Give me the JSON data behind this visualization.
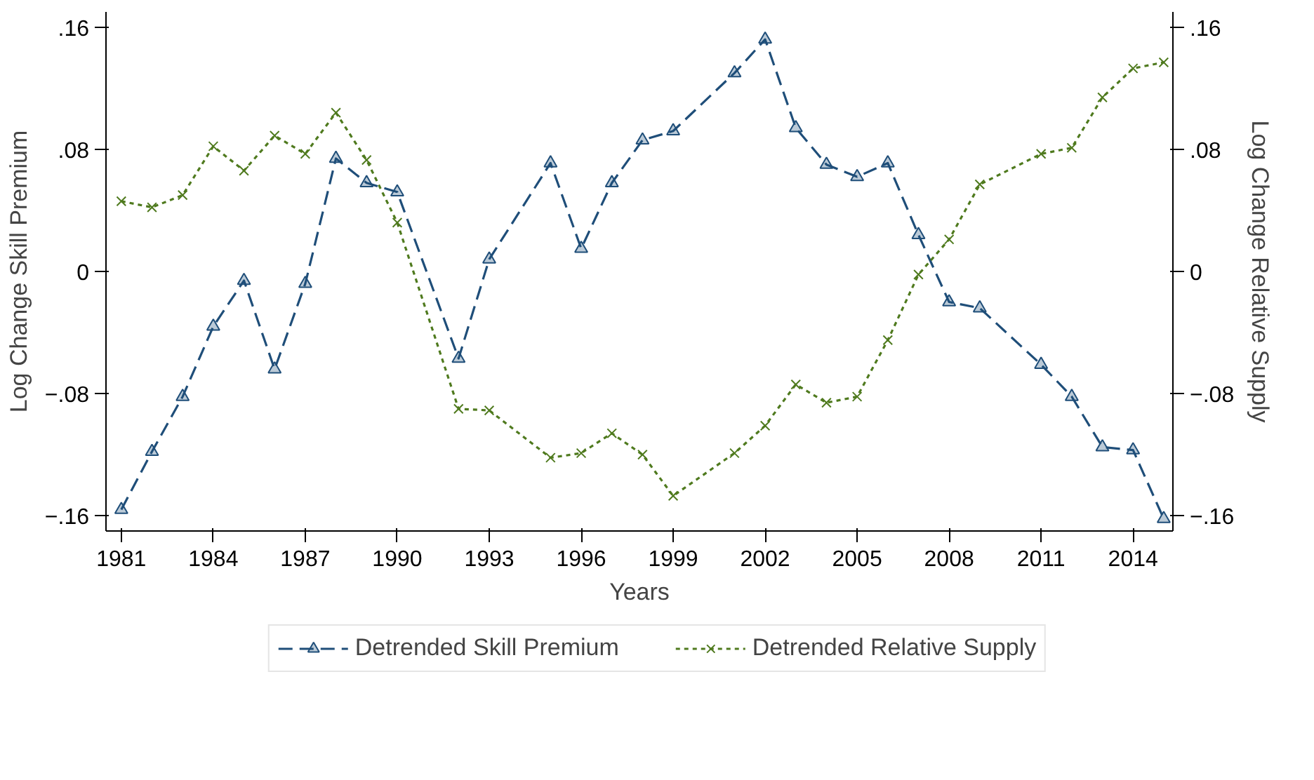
{
  "chart_data": {
    "type": "line",
    "xlabel": "Years",
    "ylabel": "Log Change Skill Premium",
    "y2label": "Log Change Relative Supply",
    "x": [
      1981,
      1982,
      1983,
      1984,
      1985,
      1986,
      1987,
      1988,
      1989,
      1990,
      1992,
      1993,
      1995,
      1996,
      1997,
      1998,
      1999,
      2001,
      2002,
      2003,
      2004,
      2005,
      2006,
      2007,
      2008,
      2009,
      2011,
      2012,
      2013,
      2014,
      2015
    ],
    "series": [
      {
        "name": "Detrended Skill Premium",
        "color": "#1f4e79",
        "marker": "triangle",
        "line_style": "dashed",
        "values": [
          -0.156,
          -0.118,
          -0.082,
          -0.036,
          -0.006,
          -0.064,
          -0.008,
          0.074,
          0.058,
          0.052,
          -0.057,
          0.008,
          0.071,
          0.015,
          0.058,
          0.086,
          0.092,
          0.13,
          0.152,
          0.094,
          0.07,
          0.062,
          0.071,
          0.024,
          -0.02,
          -0.024,
          -0.061,
          -0.082,
          -0.115,
          -0.117,
          -0.162
        ]
      },
      {
        "name": "Detrended Relative Supply",
        "color": "#4f7a1e",
        "marker": "cross",
        "line_style": "dotted",
        "values": [
          0.046,
          0.042,
          0.05,
          0.082,
          0.066,
          0.089,
          0.077,
          0.104,
          0.073,
          0.032,
          -0.09,
          -0.091,
          -0.122,
          -0.119,
          -0.106,
          -0.12,
          -0.147,
          -0.119,
          -0.101,
          -0.074,
          -0.086,
          -0.082,
          -0.045,
          -0.002,
          0.021,
          0.057,
          0.077,
          0.081,
          0.114,
          0.133,
          0.137
        ]
      }
    ],
    "xlim": [
      1980.5,
      2015.3
    ],
    "xticks": [
      1981,
      1984,
      1987,
      1990,
      1993,
      1996,
      1999,
      2002,
      2005,
      2008,
      2011,
      2014
    ],
    "ylim": [
      -0.17,
      0.17
    ],
    "yticks": [
      {
        "value": -0.16,
        "label": "−.16"
      },
      {
        "value": -0.08,
        "label": "−.08"
      },
      {
        "value": 0,
        "label": "0"
      },
      {
        "value": 0.08,
        "label": ".08"
      },
      {
        "value": 0.16,
        "label": ".16"
      }
    ],
    "y2lim": [
      -0.17,
      0.17
    ],
    "y2ticks": [
      {
        "value": -0.16,
        "label": "−.16"
      },
      {
        "value": -0.08,
        "label": "−.08"
      },
      {
        "value": 0,
        "label": "0"
      },
      {
        "value": 0.08,
        "label": ".08"
      },
      {
        "value": 0.16,
        "label": ".16"
      }
    ],
    "grid": false,
    "legend": "bottom"
  }
}
